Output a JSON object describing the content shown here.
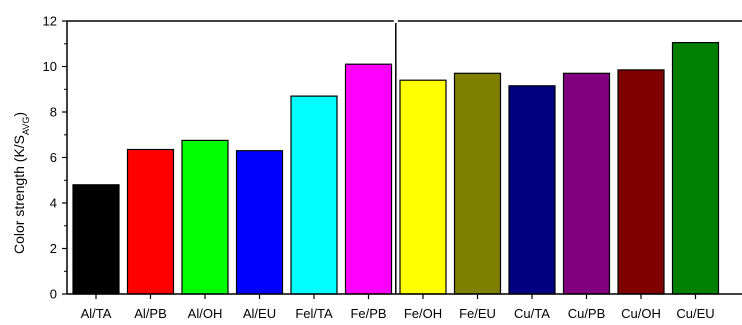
{
  "chart_data": {
    "type": "bar",
    "title": "",
    "xlabel": "",
    "ylabel": {
      "main": "Color strength (K/S",
      "subscript": "AVG",
      "close": ")"
    },
    "ylim": [
      0,
      12
    ],
    "yticks": [
      0,
      2,
      4,
      6,
      8,
      10,
      12
    ],
    "grid": false,
    "legend": "none",
    "divider_after_category": "Fe/PB",
    "categories": [
      "Al/TA",
      "Al/PB",
      "Al/OH",
      "Al/EU",
      "Fel/TA",
      "Fe/PB",
      "Fe/OH",
      "Fe/EU",
      "Cu/TA",
      "Cu/PB",
      "Cu/OH",
      "Cu/EU"
    ],
    "values": [
      4.8,
      6.35,
      6.75,
      6.3,
      8.7,
      10.1,
      9.4,
      9.7,
      9.15,
      9.7,
      9.85,
      11.05
    ],
    "colors": [
      "#000000",
      "#ff0000",
      "#00ff00",
      "#0000ff",
      "#00ffff",
      "#ff00ff",
      "#ffff00",
      "#808000",
      "#000080",
      "#800080",
      "#800000",
      "#008000"
    ]
  }
}
